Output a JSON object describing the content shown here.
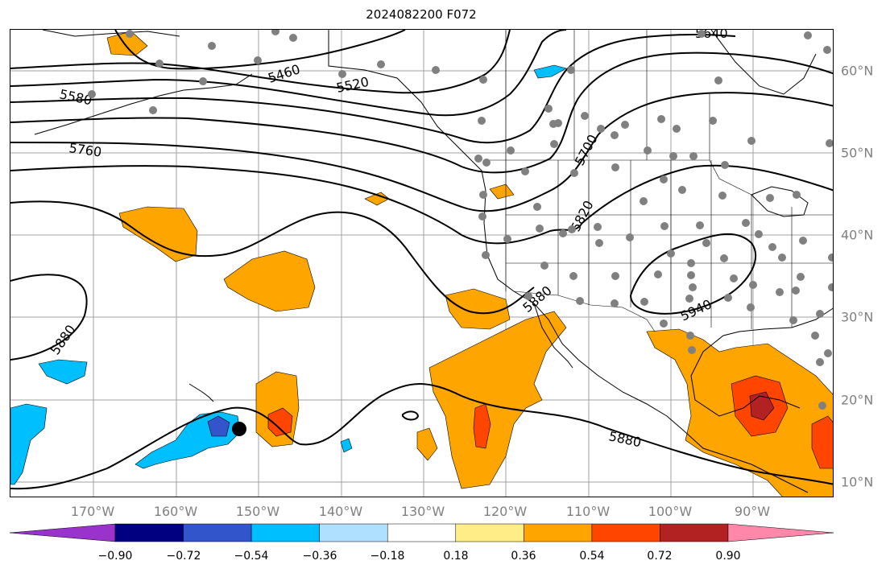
{
  "title": "2024082200 F072",
  "map": {
    "lon_labels": [
      "170°W",
      "160°W",
      "150°W",
      "140°W",
      "130°W",
      "120°W",
      "110°W",
      "100°W",
      "90°W"
    ],
    "lat_labels": [
      "60°N",
      "50°N",
      "40°N",
      "30°N",
      "20°N",
      "10°N"
    ],
    "contour_labels": [
      "5460",
      "5520",
      "5580",
      "5640",
      "5700",
      "5760",
      "5820",
      "5880",
      "5880",
      "5880",
      "5940"
    ],
    "storm_marker": "black-dot",
    "station_marker_color": "#808080"
  },
  "colorbar": {
    "ticks": [
      "−0.90",
      "−0.72",
      "−0.54",
      "−0.36",
      "−0.18",
      "0.18",
      "0.36",
      "0.54",
      "0.72",
      "0.90"
    ],
    "colors": [
      "#9933cc",
      "#000080",
      "#3355cc",
      "#00bfff",
      "#b0e0ff",
      "#ffffff",
      "#ffee88",
      "#ffa500",
      "#ff4500",
      "#b22222",
      "#ff88aa"
    ]
  }
}
